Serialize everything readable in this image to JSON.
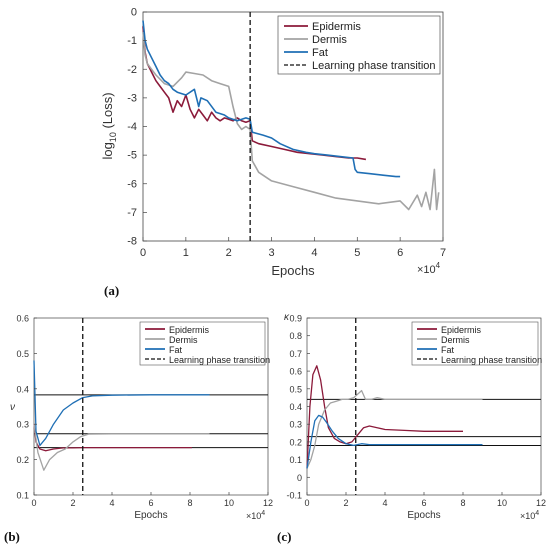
{
  "chart_data": [
    {
      "panel": "(a)",
      "type": "line",
      "xlabel": "Epochs",
      "ylabel_base": "log",
      "ylabel_sub": "10",
      "ylabel_rest": " (Loss)",
      "x_multiplier": "×10",
      "x_multiplier_exp": "4",
      "xlim": [
        0,
        7
      ],
      "ylim": [
        -8,
        0
      ],
      "xticks": [
        "0",
        "1",
        "2",
        "3",
        "4",
        "5",
        "6",
        "7"
      ],
      "yticks": [
        "0",
        "-1",
        "-2",
        "-3",
        "-4",
        "-5",
        "-6",
        "-7",
        "-8"
      ],
      "transition_x": 2.5,
      "legend": [
        "Epidermis",
        "Dermis",
        "Fat",
        "Learning phase transition"
      ],
      "series": [
        {
          "name": "Epidermis",
          "color": "#8b1a3a",
          "x": [
            0,
            0.05,
            0.1,
            0.2,
            0.3,
            0.4,
            0.5,
            0.6,
            0.7,
            0.8,
            0.9,
            1.0,
            1.1,
            1.2,
            1.3,
            1.4,
            1.5,
            1.6,
            1.7,
            1.8,
            1.9,
            2.0,
            2.1,
            2.2,
            2.3,
            2.4,
            2.5,
            2.55,
            2.7,
            3.0,
            3.3,
            3.6,
            3.9,
            4.2,
            4.5,
            4.8,
            5.0,
            5.2
          ],
          "y": [
            -0.5,
            -1.4,
            -1.8,
            -2.1,
            -2.4,
            -2.6,
            -2.8,
            -3.0,
            -3.5,
            -3.1,
            -3.3,
            -2.9,
            -3.4,
            -3.7,
            -3.4,
            -3.6,
            -3.8,
            -3.5,
            -3.7,
            -3.8,
            -3.7,
            -3.75,
            -3.8,
            -3.7,
            -3.8,
            -3.85,
            -3.8,
            -4.5,
            -4.6,
            -4.7,
            -4.8,
            -4.9,
            -4.95,
            -5.0,
            -5.05,
            -5.1,
            -5.1,
            -5.15
          ]
        },
        {
          "name": "Dermis",
          "color": "#a3a3a3",
          "x": [
            0,
            0.05,
            0.1,
            0.2,
            0.3,
            0.5,
            0.7,
            0.9,
            1.0,
            1.2,
            1.4,
            1.6,
            1.8,
            2.0,
            2.1,
            2.2,
            2.3,
            2.4,
            2.5,
            2.55,
            2.7,
            3.0,
            3.5,
            4.0,
            4.5,
            5.0,
            5.5,
            6.0,
            6.2,
            6.4,
            6.5,
            6.6,
            6.7,
            6.8,
            6.85,
            6.9
          ],
          "y": [
            -0.7,
            -1.5,
            -1.8,
            -2.0,
            -2.2,
            -2.5,
            -2.6,
            -2.3,
            -2.1,
            -2.15,
            -2.2,
            -2.4,
            -2.5,
            -2.6,
            -3.3,
            -3.9,
            -4.1,
            -4.0,
            -4.1,
            -5.2,
            -5.6,
            -5.9,
            -6.1,
            -6.3,
            -6.5,
            -6.6,
            -6.7,
            -6.6,
            -6.9,
            -6.4,
            -6.8,
            -6.3,
            -6.9,
            -5.5,
            -6.9,
            -6.3
          ]
        },
        {
          "name": "Fat",
          "color": "#1f6fb5",
          "x": [
            0,
            0.05,
            0.1,
            0.2,
            0.3,
            0.4,
            0.5,
            0.6,
            0.7,
            0.8,
            1.0,
            1.2,
            1.3,
            1.35,
            1.5,
            1.7,
            1.9,
            2.0,
            2.2,
            2.4,
            2.5,
            2.55,
            2.8,
            3.0,
            3.2,
            3.5,
            3.8,
            4.0,
            4.3,
            4.6,
            4.9,
            4.95,
            5.0,
            5.3,
            5.6,
            5.9,
            6.0
          ],
          "y": [
            -0.3,
            -1.0,
            -1.3,
            -1.6,
            -1.9,
            -2.2,
            -2.4,
            -2.5,
            -2.7,
            -2.8,
            -2.9,
            -2.7,
            -3.3,
            -3.0,
            -3.1,
            -3.5,
            -3.6,
            -3.7,
            -3.8,
            -3.7,
            -3.75,
            -4.2,
            -4.3,
            -4.4,
            -4.6,
            -4.8,
            -4.9,
            -4.95,
            -5.0,
            -5.05,
            -5.1,
            -5.5,
            -5.6,
            -5.65,
            -5.7,
            -5.75,
            -5.75
          ]
        }
      ]
    },
    {
      "panel": "(b)",
      "type": "line",
      "xlabel": "Epochs",
      "ylabel": "ν",
      "x_multiplier": "×10",
      "x_multiplier_exp": "4",
      "xlim": [
        0,
        12
      ],
      "ylim": [
        0.1,
        0.6
      ],
      "xticks": [
        "0",
        "2",
        "4",
        "6",
        "8",
        "10",
        "12"
      ],
      "yticks": [
        "0.1",
        "0.2",
        "0.3",
        "0.4",
        "0.5",
        "0.6"
      ],
      "transition_x": 2.5,
      "reference_lines": [
        0.383,
        0.273,
        0.234
      ],
      "legend": [
        "Epidermis",
        "Dermis",
        "Fat",
        "Learning phase transition"
      ],
      "series": [
        {
          "name": "Epidermis",
          "color": "#8b1a3a",
          "x": [
            0,
            0.1,
            0.3,
            0.6,
            1,
            1.5,
            2,
            2.5,
            3,
            4,
            6,
            8.1
          ],
          "y": [
            0.3,
            0.25,
            0.23,
            0.225,
            0.23,
            0.233,
            0.233,
            0.234,
            0.234,
            0.234,
            0.234,
            0.234
          ]
        },
        {
          "name": "Dermis",
          "color": "#a3a3a3",
          "x": [
            0,
            0.2,
            0.5,
            0.8,
            1.2,
            1.6,
            2,
            2.4,
            2.8,
            4,
            6,
            9
          ],
          "y": [
            0.3,
            0.22,
            0.17,
            0.2,
            0.22,
            0.23,
            0.25,
            0.265,
            0.272,
            0.273,
            0.273,
            0.273
          ]
        },
        {
          "name": "Fat",
          "color": "#1f6fb5",
          "x": [
            0,
            0.1,
            0.3,
            0.6,
            1,
            1.5,
            2,
            2.5,
            3,
            4,
            6,
            9
          ],
          "y": [
            0.48,
            0.28,
            0.24,
            0.26,
            0.3,
            0.34,
            0.36,
            0.375,
            0.38,
            0.382,
            0.383,
            0.383
          ]
        }
      ]
    },
    {
      "panel": "(c)",
      "type": "line",
      "xlabel": "Epochs",
      "ylabel": "κ",
      "x_multiplier": "×10",
      "x_multiplier_exp": "4",
      "xlim": [
        0,
        12
      ],
      "ylim": [
        -0.1,
        0.9
      ],
      "xticks": [
        "0",
        "2",
        "4",
        "6",
        "8",
        "10",
        "12"
      ],
      "yticks": [
        "-0.1",
        "0",
        "0.1",
        "0.2",
        "0.3",
        "0.4",
        "0.5",
        "0.6",
        "0.7",
        "0.8",
        "0.9"
      ],
      "transition_x": 2.5,
      "reference_lines": [
        0.44,
        0.23,
        0.18
      ],
      "legend": [
        "Epidermis",
        "Dermis",
        "Fat",
        "Learning phase transition"
      ],
      "series": [
        {
          "name": "Epidermis",
          "color": "#8b1a3a",
          "x": [
            0,
            0.15,
            0.3,
            0.5,
            0.7,
            0.9,
            1.1,
            1.4,
            1.7,
            2,
            2.3,
            2.6,
            2.9,
            3.2,
            3.6,
            4,
            5,
            6,
            7,
            8
          ],
          "y": [
            0.05,
            0.4,
            0.58,
            0.63,
            0.55,
            0.4,
            0.28,
            0.22,
            0.2,
            0.19,
            0.2,
            0.24,
            0.28,
            0.29,
            0.28,
            0.27,
            0.265,
            0.26,
            0.26,
            0.26
          ]
        },
        {
          "name": "Dermis",
          "color": "#a3a3a3",
          "x": [
            0,
            0.2,
            0.4,
            0.6,
            0.9,
            1.2,
            1.5,
            1.8,
            2.1,
            2.4,
            2.6,
            2.8,
            3.0,
            3.3,
            3.6,
            4,
            5,
            6,
            7,
            8,
            9
          ],
          "y": [
            0.05,
            0.1,
            0.18,
            0.3,
            0.38,
            0.42,
            0.43,
            0.44,
            0.44,
            0.45,
            0.47,
            0.49,
            0.44,
            0.44,
            0.45,
            0.44,
            0.44,
            0.44,
            0.44,
            0.44,
            0.44
          ]
        },
        {
          "name": "Fat",
          "color": "#1f6fb5",
          "x": [
            0,
            0.2,
            0.4,
            0.6,
            0.8,
            1.0,
            1.3,
            1.6,
            2.0,
            2.4,
            2.8,
            3.2,
            4,
            5,
            6,
            8,
            9
          ],
          "y": [
            0.05,
            0.2,
            0.32,
            0.35,
            0.34,
            0.31,
            0.26,
            0.22,
            0.19,
            0.18,
            0.19,
            0.185,
            0.185,
            0.185,
            0.185,
            0.185,
            0.185
          ]
        }
      ]
    }
  ]
}
